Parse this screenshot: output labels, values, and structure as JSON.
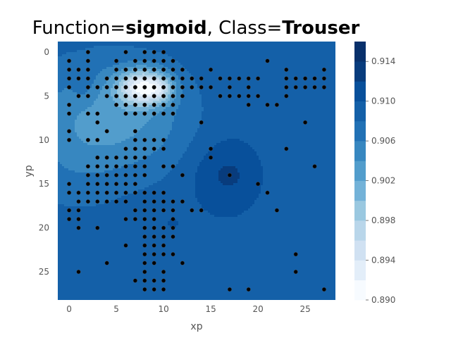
{
  "chart_data": {
    "type": "heatmap",
    "title": {
      "prefix": "Function=",
      "function": "sigmoid",
      "middle": ", Class=",
      "class": "Trouser"
    },
    "xlabel": "xp",
    "ylabel": "yp",
    "xlim": [
      -1.2,
      28.2
    ],
    "ylim": [
      28.2,
      -1.2
    ],
    "y_inverted": true,
    "xticks": [
      0,
      5,
      10,
      15,
      20,
      25
    ],
    "yticks": [
      0,
      5,
      10,
      15,
      20,
      25
    ],
    "colorbar": {
      "colormap": "Blues",
      "range": [
        0.89,
        0.916
      ],
      "levels": [
        0.89,
        0.892,
        0.894,
        0.896,
        0.898,
        0.9,
        0.902,
        0.904,
        0.906,
        0.908,
        0.91,
        0.912,
        0.914,
        0.916
      ],
      "ticks": [
        "0.890",
        "0.894",
        "0.898",
        "0.902",
        "0.906",
        "0.910",
        "0.914"
      ]
    },
    "field": {
      "base": 0.9092,
      "features": [
        {
          "cx": 7.8,
          "cy": 4.0,
          "sx": 1.8,
          "sy": 1.4,
          "amp": -0.0145
        },
        {
          "cx": 9.8,
          "cy": 4.2,
          "sx": 1.0,
          "sy": 1.0,
          "amp": -0.0045
        },
        {
          "cx": 4.5,
          "cy": 6.5,
          "sx": 5.5,
          "sy": 4.5,
          "amp": -0.0038
        },
        {
          "cx": 0.5,
          "cy": 11.0,
          "sx": 4.0,
          "sy": 5.0,
          "amp": -0.0025
        },
        {
          "cx": 8.0,
          "cy": 9.0,
          "sx": 4.0,
          "sy": 4.0,
          "amp": -0.0018
        },
        {
          "cx": 1.5,
          "cy": 3.5,
          "sx": 0.8,
          "sy": 1.5,
          "amp": 0.0018
        },
        {
          "cx": 16.5,
          "cy": 14.0,
          "sx": 2.5,
          "sy": 3.0,
          "amp": 0.003
        },
        {
          "cx": 17.0,
          "cy": 14.0,
          "sx": 0.6,
          "sy": 0.6,
          "amp": 0.0015
        },
        {
          "cx": 11.0,
          "cy": 19.5,
          "sx": 0.6,
          "sy": 0.6,
          "amp": 0.0012
        },
        {
          "cx": 4.0,
          "cy": 9.0,
          "sx": 0.5,
          "sy": 0.5,
          "amp": -0.0012
        }
      ]
    },
    "points": [
      [
        2,
        0
      ],
      [
        6,
        0
      ],
      [
        8,
        0
      ],
      [
        9,
        0
      ],
      [
        10,
        0
      ],
      [
        0,
        1
      ],
      [
        2,
        1
      ],
      [
        5,
        1
      ],
      [
        7,
        1
      ],
      [
        8,
        1
      ],
      [
        9,
        1
      ],
      [
        10,
        1
      ],
      [
        11,
        1
      ],
      [
        21,
        1
      ],
      [
        0,
        2
      ],
      [
        1,
        2
      ],
      [
        2,
        2
      ],
      [
        5,
        2
      ],
      [
        6,
        2
      ],
      [
        7,
        2
      ],
      [
        8,
        2
      ],
      [
        9,
        2
      ],
      [
        10,
        2
      ],
      [
        11,
        2
      ],
      [
        12,
        2
      ],
      [
        15,
        2
      ],
      [
        23,
        2
      ],
      [
        27,
        2
      ],
      [
        0,
        3
      ],
      [
        1,
        3
      ],
      [
        2,
        3
      ],
      [
        4,
        3
      ],
      [
        5,
        3
      ],
      [
        6,
        3
      ],
      [
        7,
        3
      ],
      [
        8,
        3
      ],
      [
        9,
        3
      ],
      [
        10,
        3
      ],
      [
        11,
        3
      ],
      [
        12,
        3
      ],
      [
        13,
        3
      ],
      [
        14,
        3
      ],
      [
        16,
        3
      ],
      [
        17,
        3
      ],
      [
        18,
        3
      ],
      [
        19,
        3
      ],
      [
        20,
        3
      ],
      [
        23,
        3
      ],
      [
        24,
        3
      ],
      [
        25,
        3
      ],
      [
        26,
        3
      ],
      [
        27,
        3
      ],
      [
        0,
        4
      ],
      [
        2,
        4
      ],
      [
        3,
        4
      ],
      [
        4,
        4
      ],
      [
        5,
        4
      ],
      [
        6,
        4
      ],
      [
        7,
        4
      ],
      [
        8,
        4
      ],
      [
        9,
        4
      ],
      [
        10,
        4
      ],
      [
        11,
        4
      ],
      [
        12,
        4
      ],
      [
        13,
        4
      ],
      [
        14,
        4
      ],
      [
        15,
        4
      ],
      [
        17,
        4
      ],
      [
        19,
        4
      ],
      [
        23,
        4
      ],
      [
        24,
        4
      ],
      [
        25,
        4
      ],
      [
        26,
        4
      ],
      [
        27,
        4
      ],
      [
        1,
        5
      ],
      [
        2,
        5
      ],
      [
        4,
        5
      ],
      [
        5,
        5
      ],
      [
        6,
        5
      ],
      [
        7,
        5
      ],
      [
        8,
        5
      ],
      [
        9,
        5
      ],
      [
        10,
        5
      ],
      [
        11,
        5
      ],
      [
        12,
        5
      ],
      [
        16,
        5
      ],
      [
        17,
        5
      ],
      [
        18,
        5
      ],
      [
        19,
        5
      ],
      [
        20,
        5
      ],
      [
        23,
        5
      ],
      [
        0,
        6
      ],
      [
        5,
        6
      ],
      [
        6,
        6
      ],
      [
        7,
        6
      ],
      [
        8,
        6
      ],
      [
        9,
        6
      ],
      [
        10,
        6
      ],
      [
        11,
        6
      ],
      [
        19,
        6
      ],
      [
        21,
        6
      ],
      [
        22,
        6
      ],
      [
        0,
        7
      ],
      [
        2,
        7
      ],
      [
        3,
        7
      ],
      [
        6,
        7
      ],
      [
        7,
        7
      ],
      [
        8,
        7
      ],
      [
        9,
        7
      ],
      [
        10,
        7
      ],
      [
        11,
        7
      ],
      [
        3,
        8
      ],
      [
        14,
        8
      ],
      [
        25,
        8
      ],
      [
        0,
        9
      ],
      [
        4,
        9
      ],
      [
        7,
        9
      ],
      [
        0,
        10
      ],
      [
        2,
        10
      ],
      [
        3,
        10
      ],
      [
        7,
        10
      ],
      [
        8,
        10
      ],
      [
        9,
        10
      ],
      [
        10,
        10
      ],
      [
        6,
        11
      ],
      [
        7,
        11
      ],
      [
        8,
        11
      ],
      [
        9,
        11
      ],
      [
        10,
        11
      ],
      [
        15,
        11
      ],
      [
        23,
        11
      ],
      [
        3,
        12
      ],
      [
        4,
        12
      ],
      [
        5,
        12
      ],
      [
        6,
        12
      ],
      [
        7,
        12
      ],
      [
        8,
        12
      ],
      [
        15,
        12
      ],
      [
        2,
        13
      ],
      [
        3,
        13
      ],
      [
        4,
        13
      ],
      [
        5,
        13
      ],
      [
        6,
        13
      ],
      [
        7,
        13
      ],
      [
        8,
        13
      ],
      [
        10,
        13
      ],
      [
        11,
        13
      ],
      [
        26,
        13
      ],
      [
        2,
        14
      ],
      [
        3,
        14
      ],
      [
        4,
        14
      ],
      [
        5,
        14
      ],
      [
        6,
        14
      ],
      [
        7,
        14
      ],
      [
        8,
        14
      ],
      [
        12,
        14
      ],
      [
        17,
        14
      ],
      [
        0,
        15
      ],
      [
        2,
        15
      ],
      [
        3,
        15
      ],
      [
        4,
        15
      ],
      [
        5,
        15
      ],
      [
        6,
        15
      ],
      [
        7,
        15
      ],
      [
        20,
        15
      ],
      [
        0,
        16
      ],
      [
        1,
        16
      ],
      [
        2,
        16
      ],
      [
        3,
        16
      ],
      [
        4,
        16
      ],
      [
        5,
        16
      ],
      [
        6,
        16
      ],
      [
        7,
        16
      ],
      [
        8,
        16
      ],
      [
        9,
        16
      ],
      [
        10,
        16
      ],
      [
        21,
        16
      ],
      [
        1,
        17
      ],
      [
        2,
        17
      ],
      [
        3,
        17
      ],
      [
        4,
        17
      ],
      [
        5,
        17
      ],
      [
        6,
        17
      ],
      [
        8,
        17
      ],
      [
        9,
        17
      ],
      [
        10,
        17
      ],
      [
        11,
        17
      ],
      [
        12,
        17
      ],
      [
        0,
        18
      ],
      [
        1,
        18
      ],
      [
        7,
        18
      ],
      [
        8,
        18
      ],
      [
        9,
        18
      ],
      [
        10,
        18
      ],
      [
        11,
        18
      ],
      [
        13,
        18
      ],
      [
        14,
        18
      ],
      [
        22,
        18
      ],
      [
        0,
        19
      ],
      [
        1,
        19
      ],
      [
        6,
        19
      ],
      [
        7,
        19
      ],
      [
        8,
        19
      ],
      [
        9,
        19
      ],
      [
        11,
        19
      ],
      [
        1,
        20
      ],
      [
        3,
        20
      ],
      [
        8,
        20
      ],
      [
        9,
        20
      ],
      [
        10,
        20
      ],
      [
        11,
        20
      ],
      [
        8,
        21
      ],
      [
        9,
        21
      ],
      [
        10,
        21
      ],
      [
        11,
        21
      ],
      [
        6,
        22
      ],
      [
        8,
        22
      ],
      [
        9,
        22
      ],
      [
        10,
        22
      ],
      [
        8,
        23
      ],
      [
        9,
        23
      ],
      [
        10,
        23
      ],
      [
        11,
        23
      ],
      [
        24,
        23
      ],
      [
        4,
        24
      ],
      [
        8,
        24
      ],
      [
        9,
        24
      ],
      [
        12,
        24
      ],
      [
        1,
        25
      ],
      [
        8,
        25
      ],
      [
        10,
        25
      ],
      [
        24,
        25
      ],
      [
        7,
        26
      ],
      [
        8,
        26
      ],
      [
        9,
        26
      ],
      [
        10,
        26
      ],
      [
        8,
        27
      ],
      [
        9,
        27
      ],
      [
        10,
        27
      ],
      [
        17,
        27
      ],
      [
        19,
        27
      ],
      [
        27,
        27
      ]
    ]
  }
}
